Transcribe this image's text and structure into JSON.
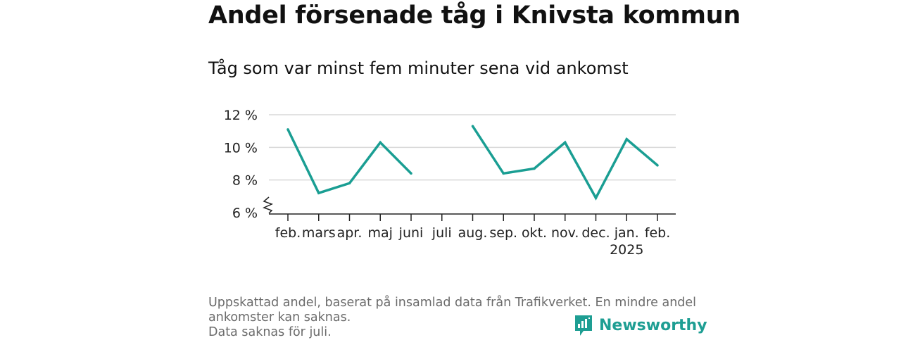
{
  "title": "Andel försenade tåg i Knivsta kommun",
  "subtitle": "Tåg som var minst fem minuter sena vid ankomst",
  "caption": [
    "Uppskattad andel, baserat på insamlad data från Trafikverket. En mindre andel",
    "ankomster kan saknas.",
    "Data saknas för juli."
  ],
  "brand": {
    "name": "Newsworthy",
    "color": "#1e9e93"
  },
  "chart_data": {
    "type": "line",
    "categories": [
      "feb.",
      "mars",
      "apr.",
      "maj",
      "juni",
      "juli",
      "aug.",
      "sep.",
      "okt.",
      "nov.",
      "dec.",
      "jan.",
      "feb."
    ],
    "year_label": {
      "category_index": 11,
      "text": "2025"
    },
    "values": [
      11.1,
      7.2,
      7.8,
      10.3,
      8.4,
      null,
      11.3,
      8.4,
      8.7,
      10.3,
      6.9,
      10.5,
      8.9
    ],
    "yticks": [
      6,
      8,
      10,
      12
    ],
    "ytick_labels": [
      "6 %",
      "8 %",
      "10 %",
      "12 %"
    ],
    "ylim": [
      6,
      12
    ],
    "axis_break": true,
    "grid": true,
    "line_color": "#1a9e93"
  }
}
